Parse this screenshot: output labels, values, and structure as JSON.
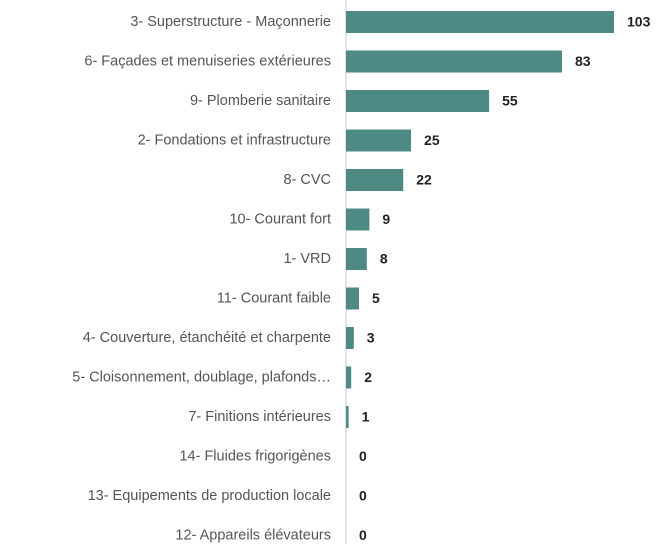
{
  "chart_data": {
    "type": "bar",
    "orientation": "horizontal",
    "categories": [
      "3- Superstructure - Maçonnerie",
      "6- Façades et menuiseries extérieures",
      "9- Plomberie sanitaire",
      "2- Fondations et infrastructure",
      "8- CVC",
      "10- Courant fort",
      "1- VRD",
      "11- Courant faible",
      "4- Couverture, étanchéité et charpente",
      "5- Cloisonnement, doublage, plafonds…",
      "7- Finitions intérieures",
      "14- Fluides frigorigènes",
      "13- Equipements de production locale",
      "12- Appareils élévateurs"
    ],
    "values": [
      103,
      83,
      55,
      25,
      22,
      9,
      8,
      5,
      3,
      2,
      1,
      0,
      0,
      0
    ],
    "color": "#4e8a83"
  }
}
